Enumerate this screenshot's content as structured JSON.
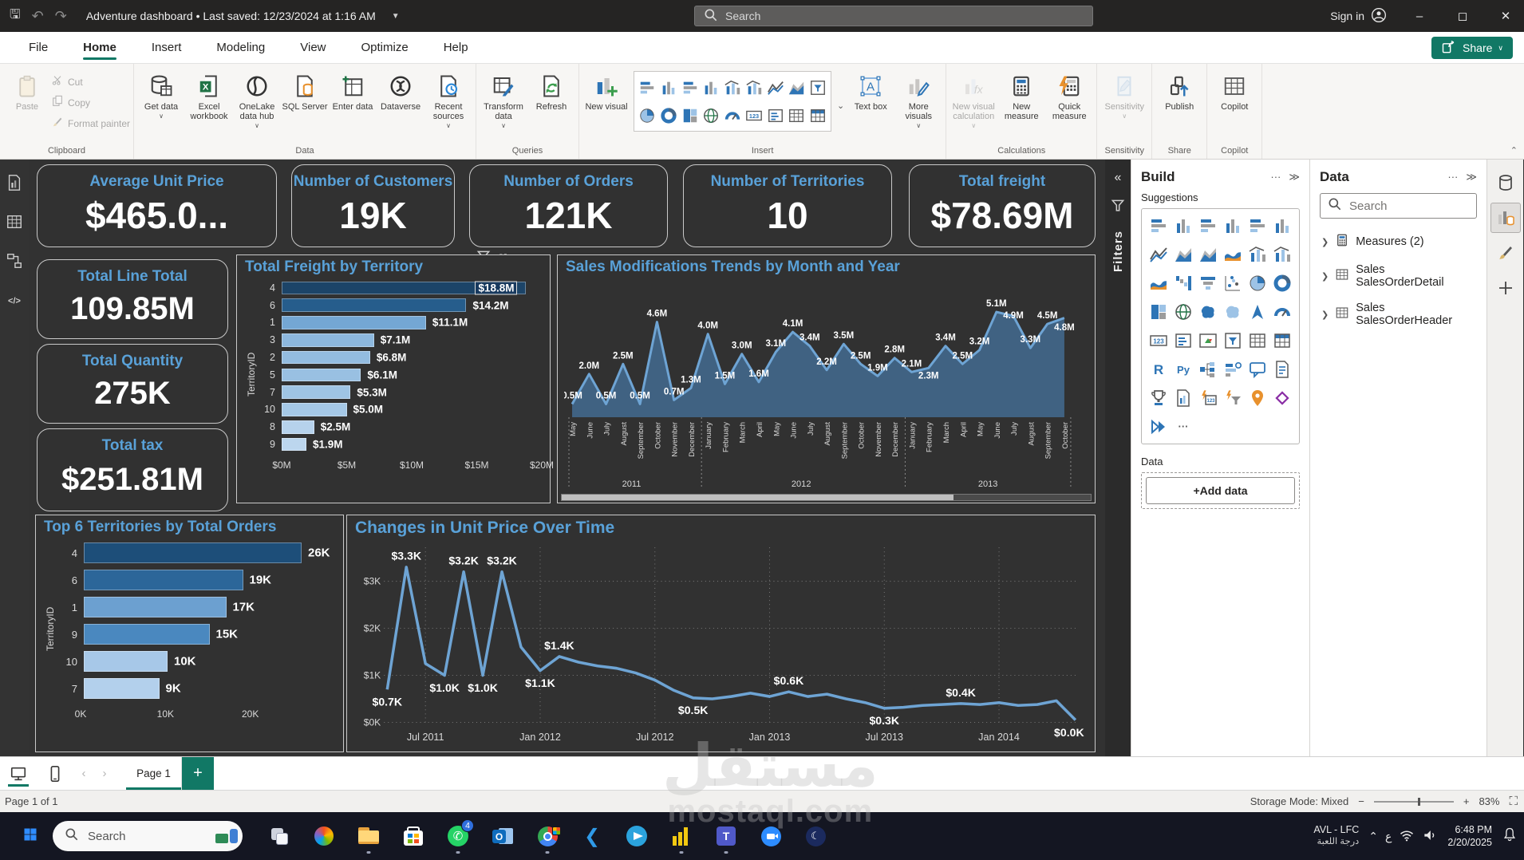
{
  "title_bar": {
    "title": "Adventure dashboard • Last saved: 12/23/2024 at 1:16 AM",
    "search": "Search",
    "sign_in": "Sign in",
    "window_controls": {
      "minimize": "–",
      "maximize": "◻",
      "close": "✕"
    }
  },
  "menu": {
    "items": [
      "File",
      "Home",
      "Insert",
      "Modeling",
      "View",
      "Optimize",
      "Help"
    ],
    "active": "Home",
    "share_label": "Share"
  },
  "ribbon": {
    "groups": [
      {
        "label": "Clipboard",
        "big": [
          {
            "label": "Paste",
            "icon": "clipboard",
            "disabled": true
          }
        ],
        "small": [
          {
            "label": "Cut",
            "icon": "scissors",
            "disabled": true
          },
          {
            "label": "Copy",
            "icon": "copy",
            "disabled": true
          },
          {
            "label": "Format painter",
            "icon": "brush",
            "disabled": true
          }
        ]
      },
      {
        "label": "Data",
        "big": [
          {
            "label": "Get data",
            "icon": "get-data",
            "dropdown": true
          },
          {
            "label": "Excel workbook",
            "icon": "excel"
          },
          {
            "label": "OneLake data hub",
            "icon": "onelake",
            "dropdown": true
          },
          {
            "label": "SQL Server",
            "icon": "sql"
          },
          {
            "label": "Enter data",
            "icon": "enter-data"
          },
          {
            "label": "Dataverse",
            "icon": "dataverse"
          },
          {
            "label": "Recent sources",
            "icon": "recent",
            "dropdown": true
          }
        ]
      },
      {
        "label": "Queries",
        "big": [
          {
            "label": "Transform data",
            "icon": "transform",
            "dropdown": true
          },
          {
            "label": "Refresh",
            "icon": "refresh"
          }
        ]
      },
      {
        "label": "Insert",
        "big": [
          {
            "label": "New visual",
            "icon": "new-visual"
          },
          {
            "label": "GALLERY",
            "icon": "gallery",
            "gallery": true
          },
          {
            "label": "Text box",
            "icon": "textbox"
          },
          {
            "label": "More visuals",
            "icon": "more-visuals",
            "dropdown": true
          }
        ]
      },
      {
        "label": "Calculations",
        "big": [
          {
            "label": "New visual calculation",
            "icon": "fx",
            "disabled": true,
            "dropdown": true
          },
          {
            "label": "New measure",
            "icon": "calculator"
          },
          {
            "label": "Quick measure",
            "icon": "quick-measure"
          }
        ]
      },
      {
        "label": "Sensitivity",
        "big": [
          {
            "label": "Sensitivity",
            "icon": "sensitivity",
            "disabled": true,
            "dropdown": true
          }
        ]
      },
      {
        "label": "Share",
        "big": [
          {
            "label": "Publish",
            "icon": "publish"
          }
        ]
      },
      {
        "label": "Copilot",
        "big": [
          {
            "label": "Copilot",
            "icon": "copilot"
          }
        ]
      }
    ],
    "gallery_rows": [
      [
        "stacked-bar",
        "clustered-column",
        "stacked-bar-2",
        "column",
        "combo-1",
        "combo-2",
        "line",
        "area",
        "slicer"
      ],
      [
        "pie",
        "donut",
        "treemap",
        "map",
        "gauge",
        "card",
        "multi-row-card",
        "table",
        "matrix"
      ]
    ]
  },
  "left_rail": [
    {
      "name": "report-view",
      "type": "docB"
    },
    {
      "name": "table-view",
      "type": "grid"
    },
    {
      "name": "model-view",
      "type": "model"
    },
    {
      "name": "dax-query-view",
      "type": "dax"
    }
  ],
  "kpis": [
    {
      "title": "Average Unit Price",
      "value": "$465.0..."
    },
    {
      "title": "Number of Customers",
      "value": "19K"
    },
    {
      "title": "Number of Orders",
      "value": "121K"
    },
    {
      "title": "Number of Territories",
      "value": "10"
    },
    {
      "title": "Total freight",
      "value": "$78.69M"
    }
  ],
  "left_kpis": [
    {
      "title": "Total Line Total",
      "value": "109.85M"
    },
    {
      "title": "Total Quantity",
      "value": "275K"
    },
    {
      "title": "Total tax",
      "value": "$251.81M"
    }
  ],
  "chart_data": [
    {
      "type": "bar",
      "orientation": "horizontal",
      "title": "Total Freight by Territory",
      "ylabel": "TerritoryID",
      "categories": [
        "4",
        "6",
        "1",
        "3",
        "2",
        "5",
        "7",
        "10",
        "8",
        "9"
      ],
      "values": [
        18.8,
        14.2,
        11.1,
        7.1,
        6.8,
        6.1,
        5.3,
        5.0,
        2.5,
        1.9
      ],
      "labels": [
        "$18.8M",
        "$14.2M",
        "$11.1M",
        "$7.1M",
        "$6.8M",
        "$6.1M",
        "$5.3M",
        "$5.0M",
        "$2.5M",
        "$1.9M"
      ],
      "bar_colors": [
        "#1c4468",
        "#265d8c",
        "#74a7d4",
        "#8db8de",
        "#93bce0",
        "#99c0e2",
        "#9fc4e4",
        "#a5c8e6",
        "#b6d2ec",
        "#bcd6ee"
      ],
      "x_ticks": [
        "$0M",
        "$5M",
        "$10M",
        "$15M",
        "$20M"
      ],
      "x_tick_max": 20,
      "xlim": [
        0,
        20
      ],
      "first_label_inside": true
    },
    {
      "type": "area",
      "title": "Sales Modifications Trends by Month and Year",
      "x": [
        "May",
        "June",
        "July",
        "August",
        "September",
        "October",
        "November",
        "December",
        "January",
        "February",
        "March",
        "April",
        "May",
        "June",
        "July",
        "August",
        "September",
        "October",
        "November",
        "December",
        "January",
        "February",
        "March",
        "April",
        "May",
        "June",
        "July",
        "August",
        "September",
        "October"
      ],
      "values": [
        0.5,
        2.0,
        0.5,
        2.5,
        0.5,
        4.6,
        0.7,
        1.3,
        4.0,
        1.5,
        3.0,
        1.6,
        3.1,
        4.1,
        3.4,
        2.2,
        3.5,
        2.5,
        1.9,
        2.8,
        2.1,
        2.3,
        3.4,
        2.5,
        3.2,
        5.1,
        4.9,
        3.3,
        4.5,
        4.8
      ],
      "labels": [
        "0.5M",
        "2.0M",
        "0.5M",
        "2.5M",
        "0.5M",
        "4.6M",
        "0.7M",
        "1.3M",
        "4.0M",
        "1.5M",
        "3.0M",
        "1.6M",
        "3.1M",
        "4.1M",
        "3.4M",
        "2.2M",
        "3.5M",
        "2.5M",
        "1.9M",
        "2.8M",
        "2.1M",
        "2.3M",
        "3.4M",
        "2.5M",
        "3.2M",
        "5.1M",
        "4.9M",
        "3.3M",
        "4.5M",
        "4.8M"
      ],
      "years": [
        {
          "label": "2011",
          "from": 0,
          "to": 7
        },
        {
          "label": "2012",
          "from": 8,
          "to": 19
        },
        {
          "label": "2013",
          "from": 20,
          "to": 29
        }
      ],
      "ylim": [
        0,
        5.7
      ],
      "line_color": "#6ea4d4",
      "fill_color": "#43688c"
    },
    {
      "type": "bar",
      "orientation": "horizontal",
      "title": "Top 6 Territories by Total Orders",
      "ylabel": "TerritoryID",
      "categories": [
        "4",
        "6",
        "1",
        "9",
        "10",
        "7"
      ],
      "values": [
        26,
        19,
        17,
        15,
        10,
        9
      ],
      "labels": [
        "26K",
        "19K",
        "17K",
        "15K",
        "10K",
        "9K"
      ],
      "bar_colors": [
        "#1d4e79",
        "#2c6699",
        "#6ca0d0",
        "#4a88bf",
        "#a7c8e8",
        "#b3d0ec"
      ],
      "x_ticks": [
        "0K",
        "10K",
        "20K"
      ],
      "x_tick_max": 20,
      "xlim": [
        0,
        30
      ],
      "first_label_inside": false
    },
    {
      "type": "line",
      "title": "Changes in Unit Price Over Time",
      "values": [
        0.7,
        3.3,
        1.25,
        1.0,
        3.2,
        1.0,
        3.2,
        1.6,
        1.1,
        1.4,
        1.28,
        1.2,
        1.15,
        1.05,
        0.9,
        0.68,
        0.52,
        0.5,
        0.55,
        0.62,
        0.55,
        0.65,
        0.55,
        0.6,
        0.5,
        0.42,
        0.3,
        0.32,
        0.36,
        0.38,
        0.4,
        0.38,
        0.42,
        0.36,
        0.38,
        0.46,
        0.05
      ],
      "point_labels": [
        {
          "i": 0,
          "t": "$0.7K",
          "pos": "below"
        },
        {
          "i": 1,
          "t": "$3.3K",
          "pos": "above"
        },
        {
          "i": 3,
          "t": "$1.0K",
          "pos": "below"
        },
        {
          "i": 4,
          "t": "$3.2K",
          "pos": "above"
        },
        {
          "i": 5,
          "t": "$1.0K",
          "pos": "below"
        },
        {
          "i": 6,
          "t": "$3.2K",
          "pos": "above"
        },
        {
          "i": 8,
          "t": "$1.1K",
          "pos": "below"
        },
        {
          "i": 9,
          "t": "$1.4K",
          "pos": "above"
        },
        {
          "i": 16,
          "t": "$0.5K",
          "pos": "below"
        },
        {
          "i": 21,
          "t": "$0.6K",
          "pos": "above"
        },
        {
          "i": 26,
          "t": "$0.3K",
          "pos": "below"
        },
        {
          "i": 30,
          "t": "$0.4K",
          "pos": "above"
        },
        {
          "i": 36,
          "t": "$0.0K",
          "pos": "below"
        }
      ],
      "x_ticks": [
        {
          "i": 2,
          "label": "Jul 2011"
        },
        {
          "i": 8,
          "label": "Jan 2012"
        },
        {
          "i": 14,
          "label": "Jul 2012"
        },
        {
          "i": 20,
          "label": "Jan 2013"
        },
        {
          "i": 26,
          "label": "Jul 2013"
        },
        {
          "i": 32,
          "label": "Jan 2014"
        }
      ],
      "y_ticks": [
        "$0K",
        "$1K",
        "$2K",
        "$3K"
      ],
      "ylim": [
        0,
        3.65
      ],
      "line_color": "#6ea4d4"
    }
  ],
  "filters_pane": {
    "label": "Filters"
  },
  "build_pane": {
    "title": "Build",
    "suggestions_label": "Suggestions",
    "data_label": "Data",
    "add_data_label": "+Add data",
    "suggestions": [
      {
        "name": "stacked-bar",
        "type": "barsH"
      },
      {
        "name": "stacked-column",
        "type": "barsV"
      },
      {
        "name": "clustered-bar",
        "type": "barsH"
      },
      {
        "name": "clustered-column",
        "type": "barsV"
      },
      {
        "name": "100-stacked-bar",
        "type": "barsH"
      },
      {
        "name": "100-stacked-column",
        "type": "barsV"
      },
      {
        "name": "line-chart",
        "type": "line"
      },
      {
        "name": "area-chart",
        "type": "area"
      },
      {
        "name": "stacked-area",
        "type": "area"
      },
      {
        "name": "ribbon-chart",
        "type": "ribbonW"
      },
      {
        "name": "line-stacked-column",
        "type": "comboVL"
      },
      {
        "name": "line-clustered-column",
        "type": "comboVL"
      },
      {
        "name": "stream-chart",
        "type": "ribbonW"
      },
      {
        "name": "waterfall",
        "type": "waterfall"
      },
      {
        "name": "funnel",
        "type": "funnel"
      },
      {
        "name": "scatter",
        "type": "scatter"
      },
      {
        "name": "pie-chart",
        "type": "pie"
      },
      {
        "name": "donut-chart",
        "type": "donut"
      },
      {
        "name": "treemap",
        "type": "treemap"
      },
      {
        "name": "map",
        "type": "globe"
      },
      {
        "name": "filled-map",
        "type": "blob"
      },
      {
        "name": "shape-map",
        "type": "blobL"
      },
      {
        "name": "azure-map",
        "type": "arrowTri"
      },
      {
        "name": "gauge",
        "type": "gauge"
      },
      {
        "name": "card",
        "type": "txt123"
      },
      {
        "name": "multi-row-card",
        "type": "lines"
      },
      {
        "name": "kpi",
        "type": "kpiTri"
      },
      {
        "name": "slicer",
        "type": "slicerI"
      },
      {
        "name": "table",
        "type": "grid"
      },
      {
        "name": "matrix",
        "type": "gridB"
      },
      {
        "name": "r-script",
        "type": "txtR"
      },
      {
        "name": "python-visual",
        "type": "txtPy"
      },
      {
        "name": "decomposition-tree",
        "type": "decomp"
      },
      {
        "name": "key-influencers",
        "type": "keyinf"
      },
      {
        "name": "qa-visual",
        "type": "bubble"
      },
      {
        "name": "smart-narrative",
        "type": "docL"
      },
      {
        "name": "metrics",
        "type": "trophy"
      },
      {
        "name": "paginated-report",
        "type": "docB"
      },
      {
        "name": "dynamic-card",
        "type": "boltC"
      },
      {
        "name": "dynamic-slicer",
        "type": "boltF"
      },
      {
        "name": "arcgis-map",
        "type": "pin"
      },
      {
        "name": "power-apps",
        "type": "diamond"
      },
      {
        "name": "power-automate",
        "type": "chevrons"
      },
      {
        "name": "more-suggestions",
        "type": "dots"
      }
    ]
  },
  "data_pane": {
    "title": "Data",
    "search_placeholder": "Search",
    "items": [
      {
        "label": "Measures (2)",
        "icon": "calculator"
      },
      {
        "label": "Sales SalesOrderDetail",
        "icon": "table"
      },
      {
        "label": "Sales SalesOrderHeader",
        "icon": "table"
      }
    ]
  },
  "right_rail": [
    {
      "name": "data-view",
      "type": "cylinder",
      "active": false
    },
    {
      "name": "build-visual",
      "type": "reportCyl",
      "active": true
    },
    {
      "name": "format-visual",
      "type": "brush",
      "active": false
    },
    {
      "name": "add-visual",
      "type": "plusI",
      "active": false
    }
  ],
  "page_bar": {
    "page_tab": "Page 1"
  },
  "status_bar": {
    "left": "Page 1 of 1",
    "storage": "Storage Mode: Mixed",
    "zoom": "83%"
  },
  "taskbar": {
    "search": "Search",
    "whatsapp_badge": "4",
    "icons": [
      "task-view",
      "copilot",
      "file-explorer",
      "microsoft-store",
      "whatsapp",
      "outlook",
      "chrome",
      "vscode",
      "telegram",
      "power-bi",
      "teams",
      "zoom",
      "moon-app"
    ],
    "tray_app": "AVL - LFC",
    "tray_app_sub": "درجة اللعبة",
    "lang": "ع",
    "time": "6:48 PM",
    "date": "2/20/2025"
  },
  "watermark": {
    "arabic": "مستقل",
    "latin": "mostaql.com"
  }
}
